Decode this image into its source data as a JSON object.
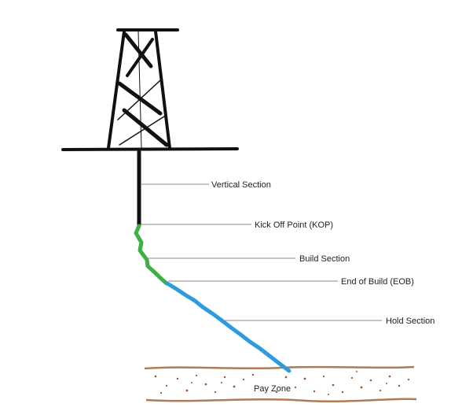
{
  "labels": {
    "vertical_section": "Vertical Section",
    "kick_off_point": "Kick Off Point (KOP)",
    "build_section": "Build Section",
    "end_of_build": "End of Build (EOB)",
    "hold_section": "Hold Section",
    "pay_zone": "Pay Zone"
  },
  "colors": {
    "rig": "#111111",
    "vertical_section": "#111111",
    "build_section": "#3cb043",
    "hold_section": "#2e9be0",
    "pay_zone_boundary": "#b07a55",
    "pay_zone_grains": "#a0522d",
    "leader_lines": "#8c8c8c"
  }
}
